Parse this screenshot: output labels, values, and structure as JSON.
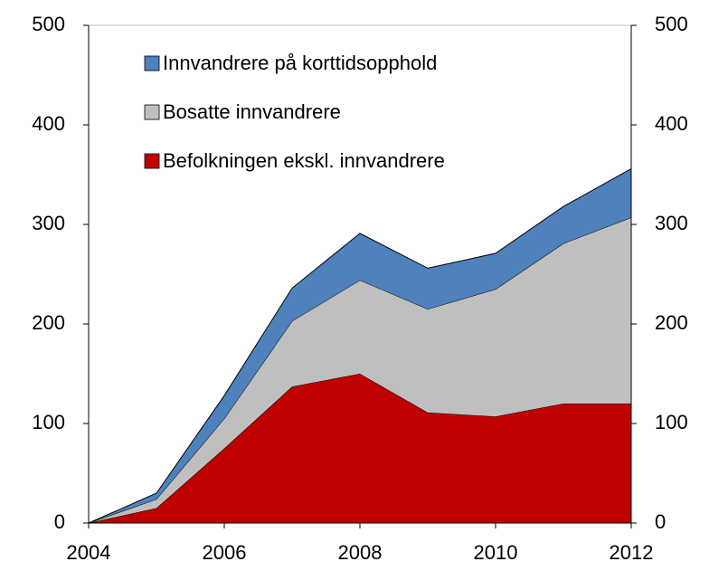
{
  "chart_data": {
    "type": "stacked_area",
    "x": [
      2004,
      2005,
      2006,
      2007,
      2008,
      2009,
      2010,
      2011,
      2012
    ],
    "series": [
      {
        "name": "Befolkningen ekskl. innvandrere",
        "color": "#c00000",
        "values": [
          0,
          15,
          75,
          137,
          150,
          111,
          107,
          120,
          120
        ]
      },
      {
        "name": "Bosatte innvandrere",
        "color": "#bfbfbf",
        "values": [
          0,
          9,
          30,
          66,
          94,
          104,
          128,
          161,
          187
        ]
      },
      {
        "name": "Innvandrere på korttidsopphold",
        "color": "#4f81bd",
        "values": [
          0,
          6,
          23,
          33,
          47,
          41,
          36,
          37,
          49
        ]
      }
    ],
    "xlim": [
      2004,
      2012
    ],
    "xticks": [
      2004,
      2006,
      2008,
      2010,
      2012
    ],
    "ylim": [
      0,
      500
    ],
    "yticks": [
      0,
      100,
      200,
      300,
      400,
      500
    ],
    "y2lim": [
      0,
      500
    ],
    "y2ticks": [
      0,
      100,
      200,
      300,
      400,
      500
    ],
    "legend": "upper left"
  }
}
